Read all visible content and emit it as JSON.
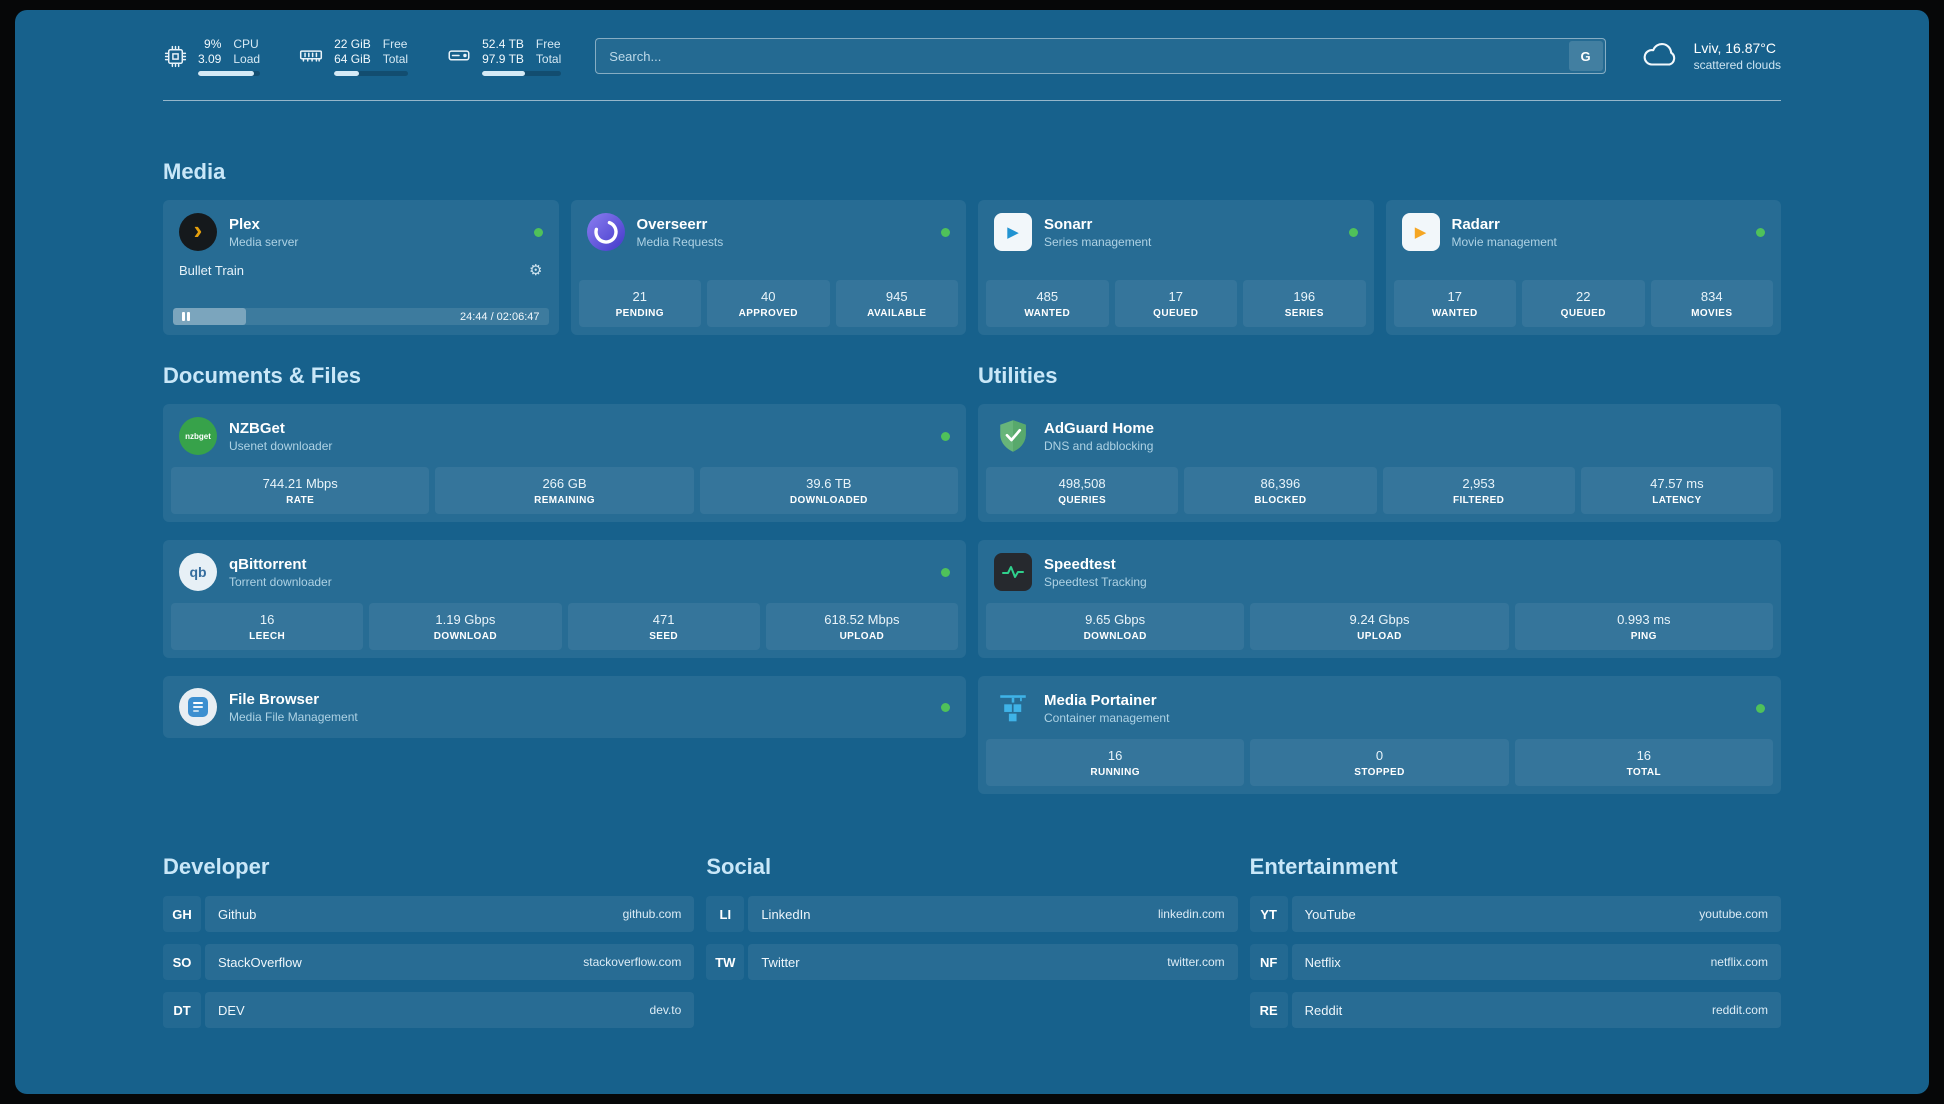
{
  "colors": {
    "background": "#17618c",
    "status_online": "#4fc15a",
    "plex_amber": "#e5a00d",
    "adguard_green": "#67b57a",
    "speedtest_green": "#2fd08c",
    "portainer_blue": "#3fb3e8"
  },
  "icons": {
    "plex_chevron": "›",
    "gear": "⚙",
    "sonarr_play": "▶",
    "radarr_play": "▶",
    "nzbget_text": "nzbget",
    "qbittorrent_text": "qb"
  },
  "topbar": {
    "cpu": {
      "value": "9%",
      "sub": "3.09",
      "label_top": "CPU",
      "label_bottom": "Load",
      "bar_percent": 91
    },
    "ram": {
      "value": "22 GiB",
      "sub": "64 GiB",
      "label_top": "Free",
      "label_bottom": "Total",
      "bar_percent": 34
    },
    "disk": {
      "value": "52.4 TB",
      "sub": "97.9 TB",
      "label_top": "Free",
      "label_bottom": "Total",
      "bar_percent": 54
    },
    "search": {
      "placeholder": "Search...",
      "engine_label": "G"
    },
    "weather": {
      "location": "Lviv, 16.87°C",
      "condition": "scattered clouds"
    }
  },
  "section_titles": {
    "media": "Media",
    "documents": "Documents & Files",
    "utilities": "Utilities",
    "developer": "Developer",
    "social": "Social",
    "entertainment": "Entertainment"
  },
  "apps": {
    "plex": {
      "name": "Plex",
      "desc": "Media server",
      "now_playing": "Bullet Train",
      "time": "24:44 / 02:06:47",
      "progress_percent": 19.5
    },
    "overseerr": {
      "name": "Overseerr",
      "desc": "Media Requests",
      "stats": [
        {
          "value": "21",
          "label": "PENDING"
        },
        {
          "value": "40",
          "label": "APPROVED"
        },
        {
          "value": "945",
          "label": "AVAILABLE"
        }
      ]
    },
    "sonarr": {
      "name": "Sonarr",
      "desc": "Series management",
      "stats": [
        {
          "value": "485",
          "label": "WANTED"
        },
        {
          "value": "17",
          "label": "QUEUED"
        },
        {
          "value": "196",
          "label": "SERIES"
        }
      ]
    },
    "radarr": {
      "name": "Radarr",
      "desc": "Movie management",
      "stats": [
        {
          "value": "17",
          "label": "WANTED"
        },
        {
          "value": "22",
          "label": "QUEUED"
        },
        {
          "value": "834",
          "label": "MOVIES"
        }
      ]
    },
    "nzbget": {
      "name": "NZBGet",
      "desc": "Usenet downloader",
      "stats": [
        {
          "value": "744.21 Mbps",
          "label": "RATE"
        },
        {
          "value": "266 GB",
          "label": "REMAINING"
        },
        {
          "value": "39.6 TB",
          "label": "DOWNLOADED"
        }
      ]
    },
    "qbittorrent": {
      "name": "qBittorrent",
      "desc": "Torrent downloader",
      "stats": [
        {
          "value": "16",
          "label": "LEECH"
        },
        {
          "value": "1.19 Gbps",
          "label": "DOWNLOAD"
        },
        {
          "value": "471",
          "label": "SEED"
        },
        {
          "value": "618.52 Mbps",
          "label": "UPLOAD"
        }
      ]
    },
    "filebrowser": {
      "name": "File Browser",
      "desc": "Media File Management"
    },
    "adguard": {
      "name": "AdGuard Home",
      "desc": "DNS and adblocking",
      "stats": [
        {
          "value": "498,508",
          "label": "QUERIES"
        },
        {
          "value": "86,396",
          "label": "BLOCKED"
        },
        {
          "value": "2,953",
          "label": "FILTERED"
        },
        {
          "value": "47.57 ms",
          "label": "LATENCY"
        }
      ]
    },
    "speedtest": {
      "name": "Speedtest",
      "desc": "Speedtest Tracking",
      "stats": [
        {
          "value": "9.65 Gbps",
          "label": "DOWNLOAD"
        },
        {
          "value": "9.24 Gbps",
          "label": "UPLOAD"
        },
        {
          "value": "0.993 ms",
          "label": "PING"
        }
      ]
    },
    "portainer": {
      "name": "Media Portainer",
      "desc": "Container management",
      "stats": [
        {
          "value": "16",
          "label": "RUNNING"
        },
        {
          "value": "0",
          "label": "STOPPED"
        },
        {
          "value": "16",
          "label": "TOTAL"
        }
      ]
    }
  },
  "bookmarks": {
    "developer": [
      {
        "abbr": "GH",
        "name": "Github",
        "url": "github.com"
      },
      {
        "abbr": "SO",
        "name": "StackOverflow",
        "url": "stackoverflow.com"
      },
      {
        "abbr": "DT",
        "name": "DEV",
        "url": "dev.to"
      }
    ],
    "social": [
      {
        "abbr": "LI",
        "name": "LinkedIn",
        "url": "linkedin.com"
      },
      {
        "abbr": "TW",
        "name": "Twitter",
        "url": "twitter.com"
      }
    ],
    "entertainment": [
      {
        "abbr": "YT",
        "name": "YouTube",
        "url": "youtube.com"
      },
      {
        "abbr": "NF",
        "name": "Netflix",
        "url": "netflix.com"
      },
      {
        "abbr": "RE",
        "name": "Reddit",
        "url": "reddit.com"
      }
    ]
  }
}
